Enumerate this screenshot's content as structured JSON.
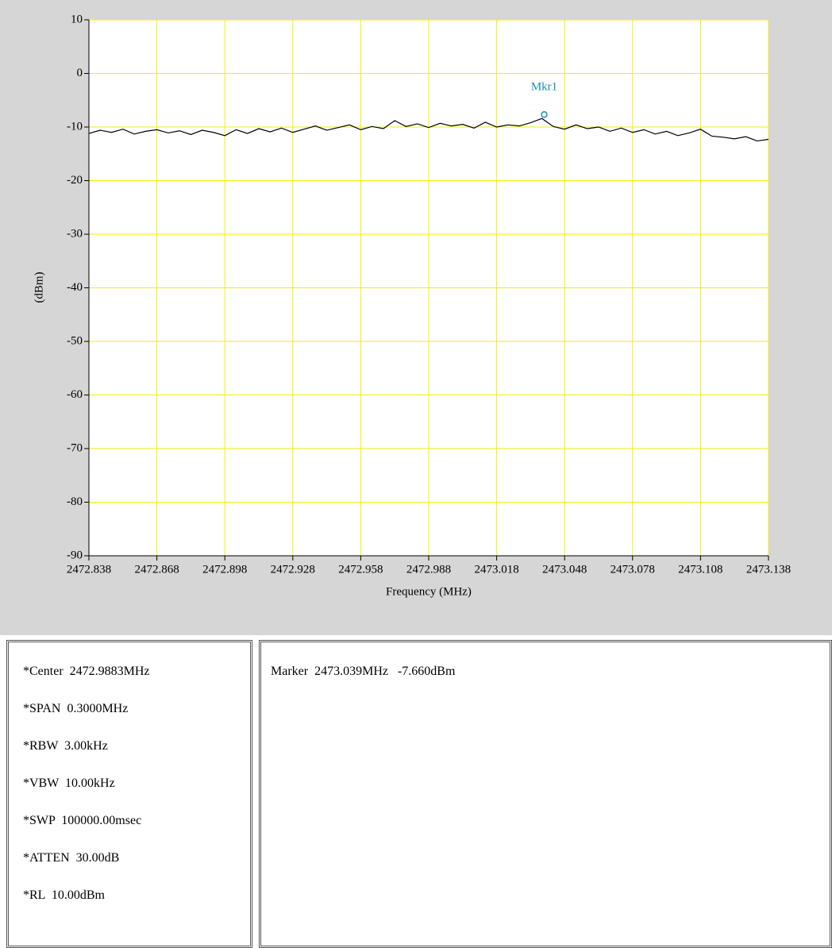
{
  "chart_data": {
    "type": "line",
    "ylabel": "(dBm)",
    "xlabel": "Frequency (MHz)",
    "xlim": [
      2472.838,
      2473.138
    ],
    "xticks": [
      2472.838,
      2472.868,
      2472.898,
      2472.928,
      2472.958,
      2472.988,
      2473.018,
      2473.048,
      2473.078,
      2473.108,
      2473.138
    ],
    "ylim": [
      -90,
      10
    ],
    "yticks": [
      10,
      0,
      -10,
      -20,
      -30,
      -40,
      -50,
      -60,
      -70,
      -80,
      -90
    ],
    "grid": true,
    "grid_color": "#f2f200",
    "x": [
      2472.838,
      2472.843,
      2472.848,
      2472.853,
      2472.858,
      2472.863,
      2472.868,
      2472.873,
      2472.878,
      2472.883,
      2472.888,
      2472.893,
      2472.898,
      2472.903,
      2472.908,
      2472.913,
      2472.918,
      2472.923,
      2472.928,
      2472.933,
      2472.938,
      2472.943,
      2472.948,
      2472.953,
      2472.958,
      2472.963,
      2472.968,
      2472.973,
      2472.978,
      2472.983,
      2472.988,
      2472.993,
      2472.998,
      2473.003,
      2473.008,
      2473.013,
      2473.018,
      2473.023,
      2473.028,
      2473.033,
      2473.038,
      2473.043,
      2473.048,
      2473.053,
      2473.058,
      2473.063,
      2473.068,
      2473.073,
      2473.078,
      2473.083,
      2473.088,
      2473.093,
      2473.098,
      2473.103,
      2473.108,
      2473.113,
      2473.118,
      2473.123,
      2473.128,
      2473.133,
      2473.138
    ],
    "series": [
      {
        "color": "#000000",
        "values": [
          -11.2,
          -10.6,
          -11.0,
          -10.4,
          -11.3,
          -10.8,
          -10.5,
          -11.1,
          -10.7,
          -11.4,
          -10.6,
          -11.0,
          -11.6,
          -10.5,
          -11.2,
          -10.3,
          -10.9,
          -10.2,
          -11.0,
          -10.4,
          -9.8,
          -10.6,
          -10.1,
          -9.6,
          -10.5,
          -9.9,
          -10.3,
          -8.8,
          -9.9,
          -9.4,
          -10.1,
          -9.3,
          -9.8,
          -9.5,
          -10.2,
          -9.1,
          -10.0,
          -9.6,
          -9.8,
          -9.2,
          -8.4,
          -9.9,
          -10.4,
          -9.6,
          -10.3,
          -10.0,
          -10.8,
          -10.2,
          -11.0,
          -10.5,
          -11.3,
          -10.8,
          -11.6,
          -11.1,
          -10.4,
          -11.7,
          -11.9,
          -12.2,
          -11.8,
          -12.6,
          -12.3
        ]
      }
    ],
    "marker": {
      "label": "Mkr1",
      "x": 2473.039,
      "y": -7.66,
      "color": "#1a8fb0"
    }
  },
  "settings": [
    "*Center  2472.9883MHz",
    "*SPAN  0.3000MHz",
    "*RBW  3.00kHz",
    "*VBW  10.00kHz",
    "*SWP  100000.00msec",
    "*ATTEN  30.00dB",
    "*RL  10.00dBm"
  ],
  "marker_readout": "Marker  2473.039MHz   -7.660dBm"
}
